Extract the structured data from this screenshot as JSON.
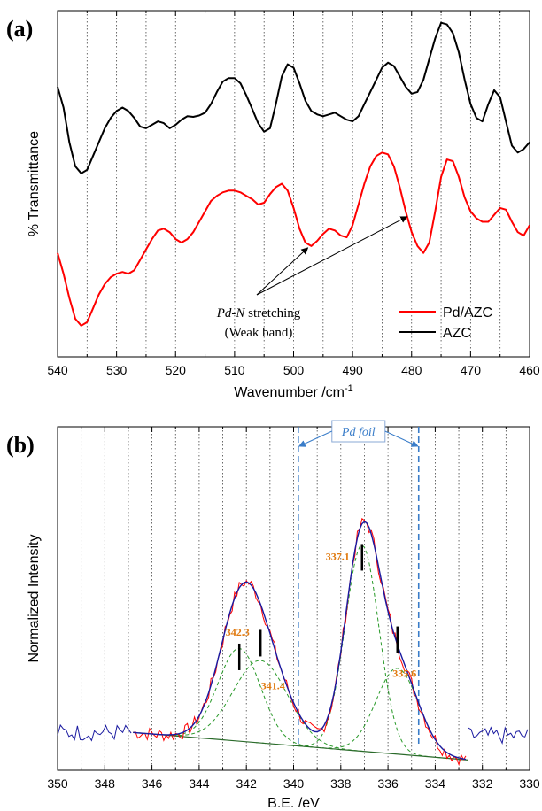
{
  "chart_data": [
    {
      "panel": "(a)",
      "type": "line",
      "xlabel": "Wavenumber /cm",
      "xlabel_sup": "-1",
      "ylabel": "% Transmittance",
      "xlim": [
        540,
        460
      ],
      "ylim": [
        0,
        1
      ],
      "y_tick_labels": false,
      "xticks": [
        540,
        530,
        520,
        510,
        500,
        490,
        480,
        470,
        460
      ],
      "grid": "vertical dotted",
      "legend": {
        "position": "bottom-right",
        "entries": [
          "Pd/AZC",
          "AZC"
        ]
      },
      "annotation": {
        "line1_italic": "Pd-N",
        "line1_rest": " stretching",
        "line2": "(Weak band)",
        "arrow_targets_x": [
          497.6,
          480.8
        ]
      },
      "series": [
        {
          "name": "AZC",
          "color": "#000000",
          "x": [
            540,
            539,
            538,
            537,
            536,
            535,
            534,
            533,
            532,
            531,
            530,
            529,
            528,
            527,
            526,
            525,
            524,
            523,
            522,
            521,
            520,
            519,
            518,
            517,
            516,
            515,
            514,
            513,
            512,
            511,
            510,
            509,
            508,
            507,
            506,
            505,
            504,
            503,
            502,
            501,
            500,
            499,
            498,
            497,
            496,
            495,
            494,
            493,
            492,
            491,
            490,
            489,
            488,
            487,
            486,
            485,
            484,
            483,
            482,
            481,
            480,
            479,
            478,
            477,
            476,
            475,
            474,
            473,
            472,
            471,
            470,
            469,
            468,
            467,
            466,
            465,
            464,
            463,
            462,
            461,
            460
          ],
          "y": [
            0.78,
            0.72,
            0.62,
            0.55,
            0.53,
            0.54,
            0.58,
            0.62,
            0.66,
            0.69,
            0.71,
            0.72,
            0.71,
            0.69,
            0.665,
            0.66,
            0.67,
            0.68,
            0.675,
            0.66,
            0.67,
            0.685,
            0.695,
            0.693,
            0.697,
            0.705,
            0.73,
            0.765,
            0.795,
            0.805,
            0.805,
            0.79,
            0.755,
            0.715,
            0.675,
            0.65,
            0.66,
            0.73,
            0.81,
            0.845,
            0.835,
            0.79,
            0.74,
            0.71,
            0.7,
            0.695,
            0.7,
            0.705,
            0.695,
            0.685,
            0.68,
            0.695,
            0.73,
            0.765,
            0.8,
            0.835,
            0.85,
            0.84,
            0.81,
            0.78,
            0.76,
            0.765,
            0.8,
            0.86,
            0.92,
            0.965,
            0.96,
            0.935,
            0.88,
            0.8,
            0.73,
            0.69,
            0.68,
            0.73,
            0.77,
            0.75,
            0.68,
            0.61,
            0.59,
            0.6,
            0.62
          ]
        },
        {
          "name": "Pd/AZC",
          "color": "#ff0000",
          "x": [
            540,
            539,
            538,
            537,
            536,
            535,
            534,
            533,
            532,
            531,
            530,
            529,
            528,
            527,
            526,
            525,
            524,
            523,
            522,
            521,
            520,
            519,
            518,
            517,
            516,
            515,
            514,
            513,
            512,
            511,
            510,
            509,
            508,
            507,
            506,
            505,
            504,
            503,
            502,
            501,
            500,
            499,
            498,
            497,
            496,
            495,
            494,
            493,
            492,
            491,
            490,
            489,
            488,
            487,
            486,
            485,
            484,
            483,
            482,
            481,
            480,
            479,
            478,
            477,
            476,
            475,
            474,
            473,
            472,
            471,
            470,
            469,
            468,
            467,
            466,
            465,
            464,
            463,
            462,
            461,
            460
          ],
          "y": [
            0.3,
            0.24,
            0.17,
            0.11,
            0.09,
            0.1,
            0.14,
            0.18,
            0.21,
            0.23,
            0.24,
            0.245,
            0.24,
            0.25,
            0.28,
            0.31,
            0.34,
            0.365,
            0.37,
            0.36,
            0.34,
            0.33,
            0.34,
            0.36,
            0.39,
            0.42,
            0.45,
            0.465,
            0.475,
            0.48,
            0.48,
            0.475,
            0.465,
            0.455,
            0.44,
            0.445,
            0.47,
            0.49,
            0.5,
            0.48,
            0.43,
            0.37,
            0.33,
            0.32,
            0.335,
            0.355,
            0.37,
            0.365,
            0.35,
            0.345,
            0.38,
            0.44,
            0.5,
            0.55,
            0.58,
            0.59,
            0.585,
            0.55,
            0.49,
            0.42,
            0.36,
            0.32,
            0.3,
            0.33,
            0.42,
            0.52,
            0.57,
            0.565,
            0.52,
            0.46,
            0.42,
            0.4,
            0.39,
            0.39,
            0.41,
            0.43,
            0.425,
            0.39,
            0.36,
            0.35,
            0.38
          ]
        }
      ]
    },
    {
      "panel": "(b)",
      "type": "line",
      "xlabel": "B.E. /eV",
      "ylabel": "Normalized Intensity",
      "xlim": [
        350,
        330
      ],
      "ylim": [
        0,
        1
      ],
      "y_tick_labels": false,
      "xticks": [
        350,
        348,
        346,
        344,
        342,
        340,
        338,
        336,
        334,
        332,
        330
      ],
      "grid": "vertical dotted",
      "reference": {
        "label": "Pd foil",
        "lines_x": [
          339.8,
          334.7
        ],
        "color": "#3a7dc9"
      },
      "baseline": {
        "from": [
          346.8,
          0.11
        ],
        "to": [
          332.6,
          0.03
        ]
      },
      "peaks": [
        {
          "center": 342.3,
          "label": "342.3",
          "height": 0.27,
          "width": 0.9
        },
        {
          "center": 341.4,
          "label": "341.4",
          "height": 0.24,
          "width": 1.15
        },
        {
          "center": 337.1,
          "label": "337.1",
          "height": 0.6,
          "width": 0.72
        },
        {
          "center": 335.6,
          "label": "335.6",
          "height": 0.25,
          "width": 0.9
        }
      ],
      "label_color": "#e07a10",
      "series": [
        {
          "name": "Experimental",
          "color": "#ff0000"
        },
        {
          "name": "Envelope fit",
          "color": "#1a1aa0"
        },
        {
          "name": "Components",
          "color": "#2a9a2a",
          "style": "dashed"
        },
        {
          "name": "Background",
          "color": "#2a6a2a"
        }
      ]
    }
  ]
}
